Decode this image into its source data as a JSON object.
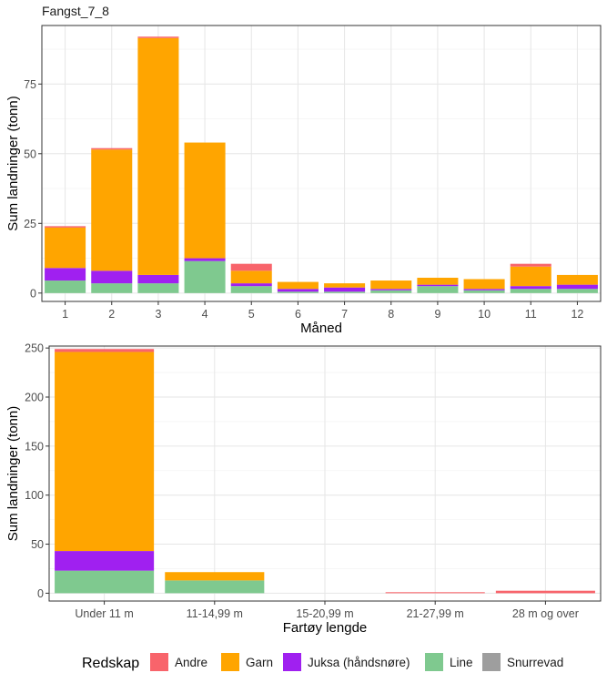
{
  "colors": {
    "Andre": "#F8646B",
    "Garn": "#FFA500",
    "Juksa (håndsnøre)": "#A020F0",
    "Line": "#7FC98F",
    "Snurrevad": "#9E9E9E"
  },
  "legend": {
    "title": "Redskap",
    "items": [
      "Andre",
      "Garn",
      "Juksa (håndsnøre)",
      "Line",
      "Snurrevad"
    ]
  },
  "chart_data": [
    {
      "type": "bar",
      "stacked": true,
      "title": "Fangst_7_8",
      "xlabel": "Måned",
      "ylabel": "Sum landninger (tonn)",
      "categories": [
        "1",
        "2",
        "3",
        "4",
        "5",
        "6",
        "7",
        "8",
        "9",
        "10",
        "11",
        "12"
      ],
      "ylim": [
        -3,
        96
      ],
      "yticks": [
        0,
        25,
        50,
        75
      ],
      "grid": true,
      "series": [
        {
          "name": "Line",
          "values": [
            4.5,
            3.5,
            3.5,
            11.5,
            2.5,
            0.5,
            0.5,
            1,
            2.5,
            1,
            1.5,
            1.5
          ]
        },
        {
          "name": "Juksa (håndsnøre)",
          "values": [
            4.5,
            4.5,
            3,
            1,
            1,
            1,
            1.5,
            0.5,
            0.5,
            0.5,
            1,
            1.5
          ]
        },
        {
          "name": "Garn",
          "values": [
            14.5,
            43.5,
            85,
            41.5,
            4.5,
            2.5,
            1.5,
            3,
            2.5,
            3.5,
            7,
            3.5
          ]
        },
        {
          "name": "Andre",
          "values": [
            0.5,
            0.5,
            0.5,
            0,
            2.5,
            0,
            0,
            0,
            0,
            0,
            1,
            0
          ]
        },
        {
          "name": "Snurrevad",
          "values": [
            0,
            0,
            0,
            0,
            0,
            0,
            0,
            0,
            0,
            0,
            0,
            0
          ]
        }
      ]
    },
    {
      "type": "bar",
      "stacked": true,
      "title": "",
      "xlabel": "Fartøy lengde",
      "ylabel": "Sum landninger (tonn)",
      "categories": [
        "Under 11 m",
        "11-14,99 m",
        "15-20,99 m",
        "21-27,99 m",
        "28 m og over"
      ],
      "ylim": [
        -8,
        252
      ],
      "yticks": [
        0,
        50,
        100,
        150,
        200,
        250
      ],
      "grid": true,
      "series": [
        {
          "name": "Line",
          "values": [
            23,
            13,
            0,
            0,
            0
          ]
        },
        {
          "name": "Juksa (håndsnøre)",
          "values": [
            20,
            0,
            0,
            0,
            0
          ]
        },
        {
          "name": "Garn",
          "values": [
            203,
            8.5,
            0,
            0,
            0
          ]
        },
        {
          "name": "Andre",
          "values": [
            3,
            0,
            0,
            1,
            2.5
          ]
        },
        {
          "name": "Snurrevad",
          "values": [
            0,
            0,
            0,
            0,
            0
          ]
        }
      ]
    }
  ]
}
